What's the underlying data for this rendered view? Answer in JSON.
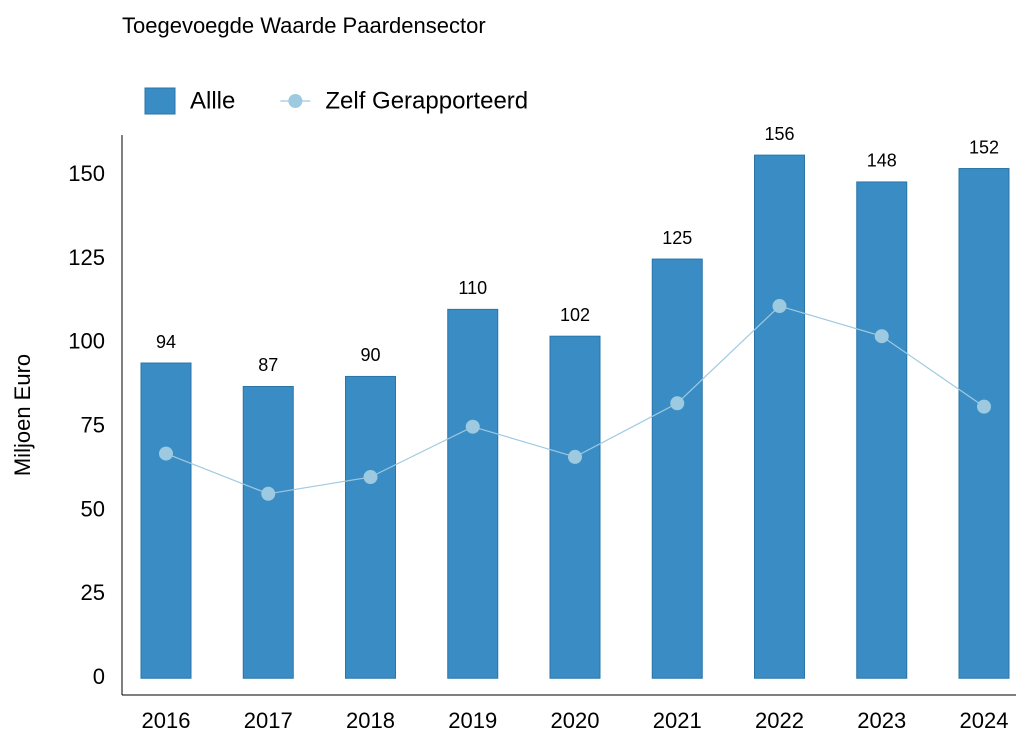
{
  "chart_data": {
    "type": "bar",
    "title": "Toegevoegde Waarde Paardensector",
    "y_label": "Miljoen Euro",
    "categories": [
      "2016",
      "2017",
      "2018",
      "2019",
      "2020",
      "2021",
      "2022",
      "2023",
      "2024"
    ],
    "series": [
      {
        "name": "Allle",
        "type": "bar",
        "color": "#3a8dc4",
        "values": [
          94,
          87,
          90,
          110,
          102,
          125,
          156,
          148,
          152
        ]
      },
      {
        "name": "Zelf Gerapporteerd",
        "type": "line",
        "color": "#9ecae1",
        "values": [
          67,
          55,
          60,
          75,
          66,
          82,
          111,
          102,
          81
        ]
      }
    ],
    "ylim": [
      -5,
      162
    ],
    "yticks": [
      0,
      25,
      50,
      75,
      100,
      125,
      150
    ],
    "legend": "top-left"
  }
}
